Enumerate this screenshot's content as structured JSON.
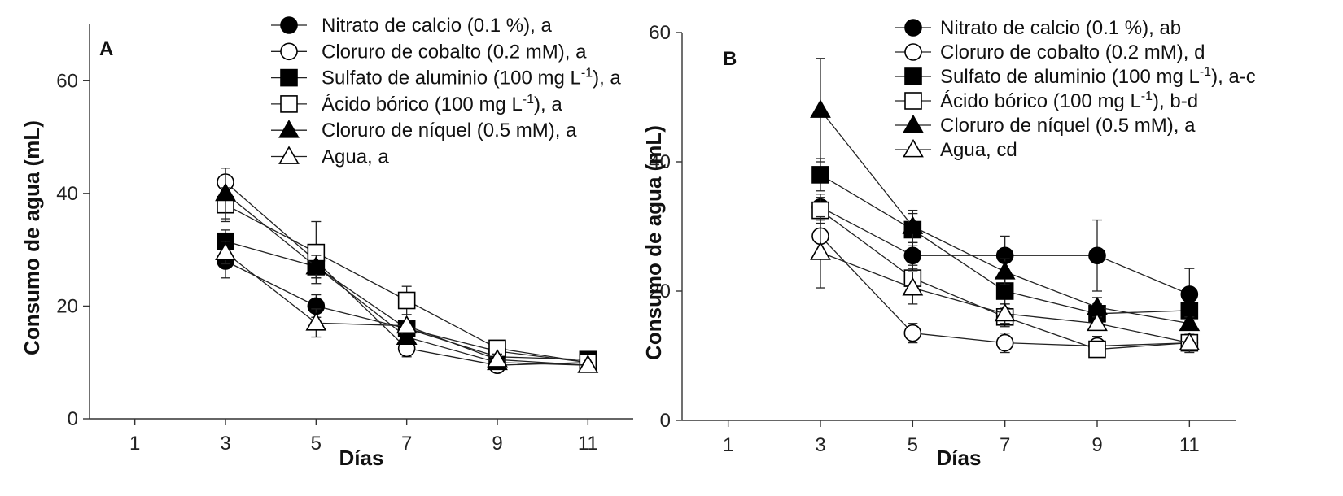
{
  "chart_data": [
    {
      "type": "line",
      "panel": "A",
      "title": "",
      "xlabel": "Días",
      "ylabel": "Consumo de agua (mL)",
      "x": [
        1,
        3,
        5,
        7,
        9,
        11
      ],
      "xticks": [
        "1",
        "3",
        "5",
        "7",
        "9",
        "11"
      ],
      "xlim": [
        0,
        12
      ],
      "ylim": [
        0,
        70
      ],
      "yticks": [
        0,
        20,
        40,
        60
      ],
      "grid": false,
      "legend_position": "top-right",
      "series": [
        {
          "name": "Nitrato de calcio (0.1 %), a",
          "marker": "circle",
          "filled": true,
          "x": [
            3,
            5,
            7,
            9,
            11
          ],
          "values": [
            28,
            20,
            16,
            12,
            10
          ],
          "errors": [
            3,
            2,
            1.5,
            1,
            0.5
          ]
        },
        {
          "name": "Cloruro de cobalto (0.2 mM), a",
          "marker": "circle",
          "filled": false,
          "x": [
            3,
            5,
            7,
            9,
            11
          ],
          "values": [
            42,
            28,
            12.5,
            9.5,
            10
          ],
          "errors": [
            2.5,
            2,
            1.5,
            1,
            0.5
          ]
        },
        {
          "name_pre": "Sulfato de aluminio (100 mg L",
          "name_sup": "-1",
          "name_post": "), a",
          "marker": "square",
          "filled": true,
          "x": [
            3,
            5,
            7,
            9,
            11
          ],
          "values": [
            31.5,
            27,
            16,
            11,
            10.5
          ],
          "errors": [
            2,
            2,
            1,
            1,
            0.5
          ]
        },
        {
          "name_pre": "Ácido bórico (100 mg L",
          "name_sup": "-1",
          "name_post": "), a",
          "marker": "square",
          "filled": false,
          "x": [
            3,
            5,
            7,
            9,
            11
          ],
          "values": [
            38,
            29.5,
            21,
            12.5,
            10
          ],
          "errors": [
            3,
            5.5,
            2.5,
            1,
            0.5
          ]
        },
        {
          "name": "Cloruro de níquel (0.5 mM), a",
          "marker": "triangle",
          "filled": true,
          "x": [
            3,
            5,
            7,
            9,
            11
          ],
          "values": [
            40,
            27,
            14.5,
            10,
            9.5
          ],
          "errors": [
            4.5,
            2,
            1,
            1,
            0.5
          ]
        },
        {
          "name": "Agua, a",
          "marker": "triangle",
          "filled": false,
          "x": [
            3,
            5,
            7,
            9,
            11
          ],
          "values": [
            29.5,
            17,
            16.5,
            10.5,
            9.5
          ],
          "errors": [
            2,
            2.5,
            1,
            1,
            0.5
          ]
        }
      ]
    },
    {
      "type": "line",
      "panel": "B",
      "title": "",
      "xlabel": "Días",
      "ylabel": "Consumo de agua (mL)",
      "x": [
        1,
        3,
        5,
        7,
        9,
        11
      ],
      "xticks": [
        "1",
        "3",
        "5",
        "7",
        "9",
        "11"
      ],
      "xlim": [
        0,
        12
      ],
      "ylim": [
        0,
        60
      ],
      "yticks": [
        0,
        20,
        40,
        60
      ],
      "grid": false,
      "legend_position": "top-right",
      "series": [
        {
          "name": "Nitrato de calcio (0.1 %), ab",
          "marker": "circle",
          "filled": true,
          "x": [
            3,
            5,
            7,
            9,
            11
          ],
          "values": [
            33,
            25.5,
            25.5,
            25.5,
            19.5
          ],
          "errors": [
            2,
            2,
            3,
            5.5,
            4
          ]
        },
        {
          "name": "Cloruro de cobalto (0.2 mM), d",
          "marker": "circle",
          "filled": false,
          "x": [
            3,
            5,
            7,
            9,
            11
          ],
          "values": [
            28.5,
            13.5,
            12,
            11.5,
            12
          ],
          "errors": [
            2.5,
            1.5,
            1.5,
            1.5,
            1
          ]
        },
        {
          "name_pre": "Sulfato de aluminio (100 mg L",
          "name_sup": "-1",
          "name_post": "), a-c",
          "marker": "square",
          "filled": true,
          "x": [
            3,
            5,
            7,
            9,
            11
          ],
          "values": [
            38,
            29.5,
            20,
            16.5,
            17
          ],
          "errors": [
            2.5,
            2.5,
            2,
            1.5,
            1
          ]
        },
        {
          "name_pre": "Ácido bórico (100 mg L",
          "name_sup": "-1",
          "name_post": "), b-d",
          "marker": "square",
          "filled": false,
          "x": [
            3,
            5,
            7,
            9,
            11
          ],
          "values": [
            32.5,
            22,
            16,
            11,
            12
          ],
          "errors": [
            2,
            2,
            1.5,
            1,
            1
          ]
        },
        {
          "name": "Cloruro de níquel (0.5 mM), a",
          "marker": "triangle",
          "filled": true,
          "x": [
            3,
            5,
            7,
            9,
            11
          ],
          "values": [
            48,
            30,
            23,
            17.5,
            15
          ],
          "errors": [
            8,
            2.5,
            2,
            1.5,
            1
          ]
        },
        {
          "name": "Agua, cd",
          "marker": "triangle",
          "filled": false,
          "x": [
            3,
            5,
            7,
            9,
            11
          ],
          "values": [
            26,
            20.5,
            16.5,
            15,
            12
          ],
          "errors": [
            5.5,
            2.5,
            1.5,
            1,
            1.5
          ]
        }
      ]
    }
  ]
}
